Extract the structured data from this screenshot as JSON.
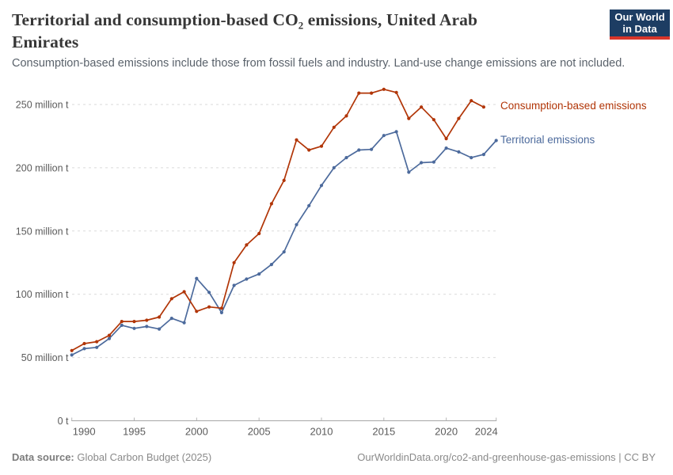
{
  "header": {
    "title": "Territorial and consumption-based CO₂ emissions, United Arab Emirates",
    "subtitle": "Consumption-based emissions include those from fossil fuels and industry. Land-use change emissions are not included.",
    "logo": {
      "line1": "Our World",
      "line2": "in Data",
      "bg_color": "#1d3d63",
      "accent_color": "#d8352a"
    }
  },
  "chart_data": {
    "type": "line",
    "title": "Territorial and consumption-based CO₂ emissions, United Arab Emirates",
    "unit": "million t",
    "ylim": [
      0,
      265
    ],
    "grid": "horizontal-dashed",
    "legend_position": "right-of-line-ends",
    "years": [
      1990,
      1991,
      1992,
      1993,
      1994,
      1995,
      1996,
      1997,
      1998,
      1999,
      2000,
      2001,
      2002,
      2003,
      2004,
      2005,
      2006,
      2007,
      2008,
      2009,
      2010,
      2011,
      2012,
      2013,
      2014,
      2015,
      2016,
      2017,
      2018,
      2019,
      2020,
      2021,
      2022,
      2023,
      2024
    ],
    "x_ticks": [
      1990,
      1995,
      2000,
      2005,
      2010,
      2015,
      2020,
      2024
    ],
    "y_ticks": [
      {
        "value": 0,
        "label": "0 t"
      },
      {
        "value": 50,
        "label": "50 million t"
      },
      {
        "value": 100,
        "label": "100 million t"
      },
      {
        "value": 150,
        "label": "150 million t"
      },
      {
        "value": 200,
        "label": "200 million t"
      },
      {
        "value": 250,
        "label": "250 million t"
      }
    ],
    "series": [
      {
        "name": "Territorial emissions",
        "color": "#4C6A9C",
        "start_year": 1990,
        "values": [
          52,
          57,
          58,
          65,
          75.5,
          73,
          74.5,
          72.5,
          81,
          77.5,
          112.5,
          101.5,
          85.5,
          107,
          112,
          116,
          123.5,
          133.5,
          155,
          170,
          186,
          200,
          208,
          214,
          214.5,
          225.5,
          228.5,
          196.5,
          204,
          204.5,
          215.5,
          212.5,
          208,
          210.5,
          221.5
        ]
      },
      {
        "name": "Consumption-based emissions",
        "color": "#B13507",
        "start_year": 1990,
        "values": [
          55.5,
          61,
          62.5,
          67.5,
          78.5,
          78.5,
          79.5,
          82,
          96.5,
          102,
          86.5,
          90,
          89,
          125,
          139,
          148,
          171.5,
          190,
          222,
          214,
          217,
          232,
          241,
          259,
          259,
          262,
          259.5,
          239,
          248,
          238,
          223,
          239,
          253,
          248
        ]
      }
    ]
  },
  "footer": {
    "source_label": "Data source:",
    "source_text": "Global Carbon Budget (2025)",
    "right_text": "OurWorldinData.org/co2-and-greenhouse-gas-emissions | CC BY"
  }
}
